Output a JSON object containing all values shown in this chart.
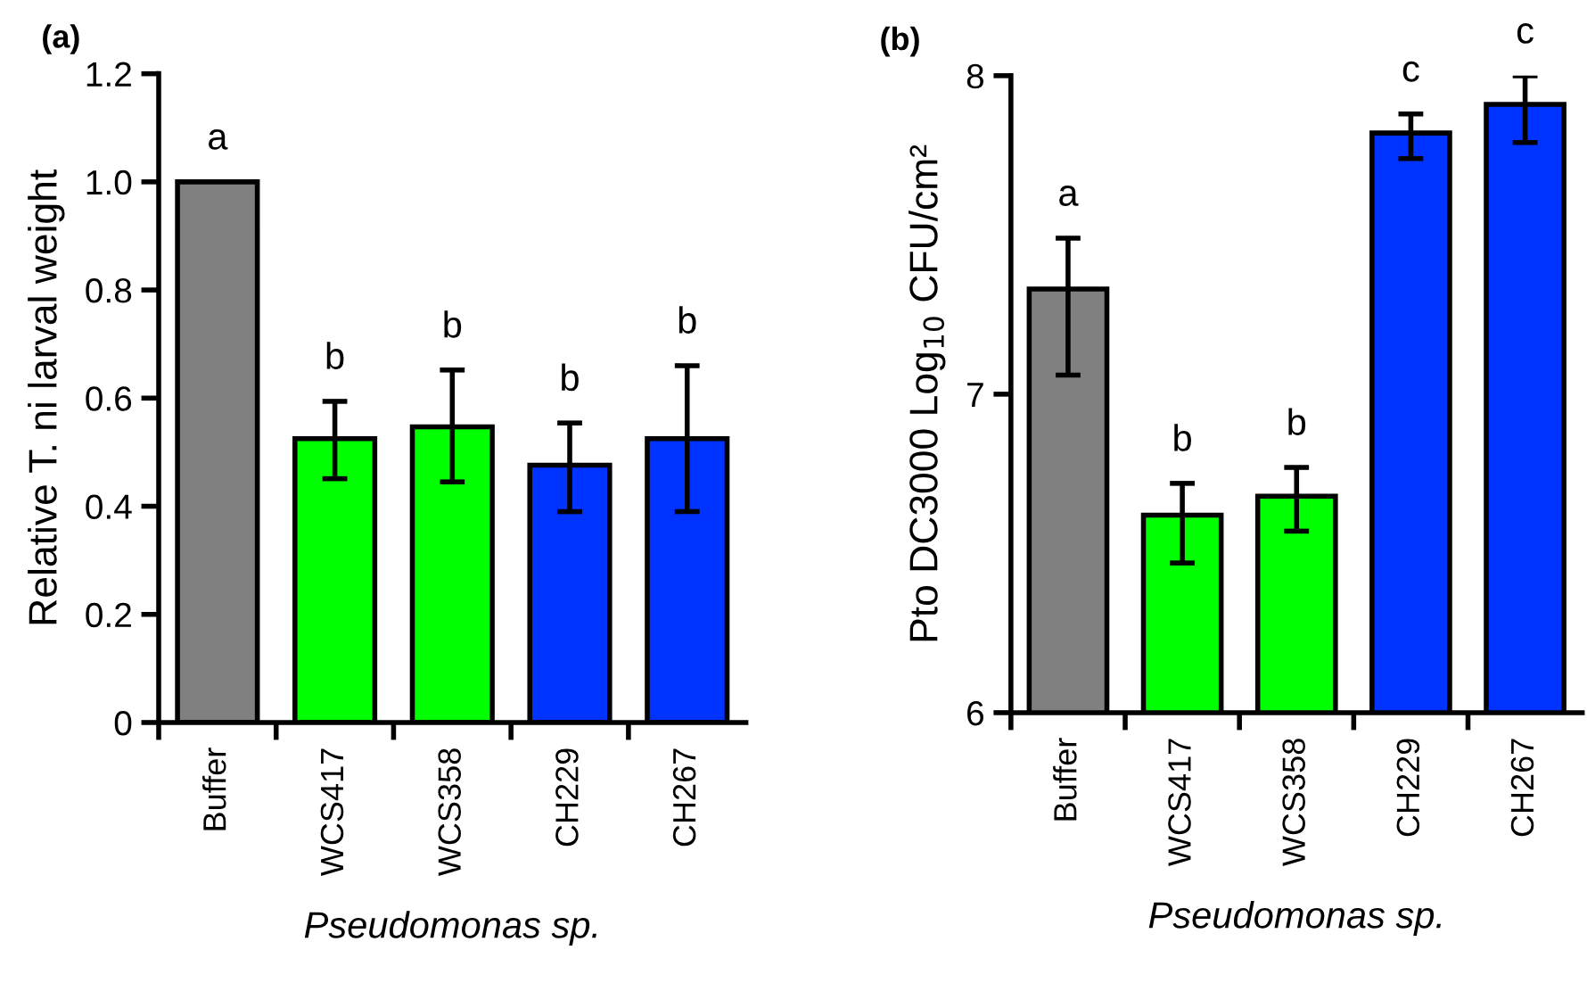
{
  "chart_data": [
    {
      "type": "bar",
      "title": "(a)",
      "xlabel": "Pseudomonas sp.",
      "ylabel": "Relative T. ni larval weight",
      "categories": [
        "Buffer",
        "WCS417",
        "WCS358",
        "CH229",
        "CH267"
      ],
      "values": [
        1.0,
        0.525,
        0.547,
        0.476,
        0.525
      ],
      "colors": [
        "#808080",
        "#00ff00",
        "#00ff00",
        "#0033ff",
        "#0033ff"
      ],
      "errors": [
        null,
        [
          0.451,
          0.594
        ],
        [
          0.445,
          0.652
        ],
        [
          0.39,
          0.554
        ],
        [
          0.39,
          0.66
        ]
      ],
      "ylim": [
        0,
        1.2
      ],
      "yticks": [
        {
          "value": 0,
          "label": "0"
        },
        {
          "value": 0.2,
          "label": "0.2"
        },
        {
          "value": 0.4,
          "label": "0.4"
        },
        {
          "value": 0.6,
          "label": "0.6"
        },
        {
          "value": 0.8,
          "label": "0.8"
        },
        {
          "value": 1.0,
          "label": "1.0"
        },
        {
          "value": 1.2,
          "label": "1.2"
        }
      ],
      "annotations": [
        {
          "text": "a",
          "x": "Buffer",
          "y": 1.0
        },
        {
          "text": "b",
          "x": "WCS417",
          "y": 0.594
        },
        {
          "text": "b",
          "x": "WCS358",
          "y": 0.652
        },
        {
          "text": "b",
          "x": "CH229",
          "y": 0.554
        },
        {
          "text": "b",
          "x": "CH267",
          "y": 0.66
        }
      ],
      "grid": false,
      "legend": false
    },
    {
      "type": "bar",
      "title": "(b)",
      "xlabel": "Pseudomonas sp.",
      "ylabel": "Pto DC3000 Log$_{10}$ CFU/cm²",
      "categories": [
        "Buffer",
        "WCS417",
        "WCS358",
        "CH229",
        "CH267"
      ],
      "values": [
        7.33,
        6.62,
        6.68,
        7.82,
        7.91
      ],
      "colors": [
        "#808080",
        "#00ff00",
        "#00ff00",
        "#0033ff",
        "#0033ff"
      ],
      "errors": [
        [
          7.06,
          7.49
        ],
        [
          6.47,
          6.72
        ],
        [
          6.57,
          6.77
        ],
        [
          7.74,
          7.88
        ],
        [
          7.79,
          8.0
        ]
      ],
      "ylim": [
        6,
        8
      ],
      "yticks": [
        6,
        7,
        8
      ],
      "annotations": [
        {
          "text": "a",
          "x": "Buffer",
          "y": 7.49
        },
        {
          "text": "b",
          "x": "WCS417",
          "y": 6.72
        },
        {
          "text": "b",
          "x": "WCS358",
          "y": 6.77
        },
        {
          "text": "c",
          "x": "CH229",
          "y": 7.88
        },
        {
          "text": "c",
          "x": "CH267",
          "y": 8.0
        }
      ],
      "grid": false,
      "legend": false
    }
  ]
}
